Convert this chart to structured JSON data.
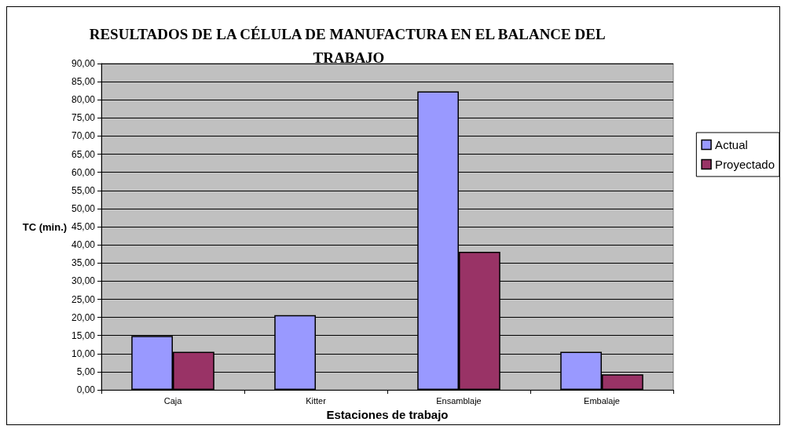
{
  "chart_data": {
    "type": "bar",
    "title": "RESULTADOS DE LA CÉLULA DE MANUFACTURA EN EL BALANCE DEL TRABAJO",
    "xlabel": "Estaciones de trabajo",
    "ylabel": "TC (min.)",
    "categories": [
      "Caja",
      "Kitter",
      "Ensamblaje",
      "Embalaje"
    ],
    "series": [
      {
        "name": "Actual",
        "color": "#9999ff",
        "values": [
          14.9,
          20.6,
          82.3,
          10.5
        ]
      },
      {
        "name": "Proyectado",
        "color": "#993366",
        "values": [
          10.5,
          null,
          38.1,
          4.3
        ]
      }
    ],
    "ylim": [
      0,
      90
    ],
    "yticks": [
      {
        "value": 0,
        "label": "0,00"
      },
      {
        "value": 5,
        "label": "5,00"
      },
      {
        "value": 10,
        "label": "10,00"
      },
      {
        "value": 15,
        "label": "15,00"
      },
      {
        "value": 20,
        "label": "20,00"
      },
      {
        "value": 25,
        "label": "25,00"
      },
      {
        "value": 30,
        "label": "30,00"
      },
      {
        "value": 35,
        "label": "35,00"
      },
      {
        "value": 40,
        "label": "40,00"
      },
      {
        "value": 45,
        "label": "45,00"
      },
      {
        "value": 50,
        "label": "50,00"
      },
      {
        "value": 55,
        "label": "55,00"
      },
      {
        "value": 60,
        "label": "60,00"
      },
      {
        "value": 65,
        "label": "65,00"
      },
      {
        "value": 70,
        "label": "70,00"
      },
      {
        "value": 75,
        "label": "75,00"
      },
      {
        "value": 80,
        "label": "80,00"
      },
      {
        "value": 85,
        "label": "85,00"
      },
      {
        "value": 90,
        "label": "90,00"
      }
    ],
    "grid": "y",
    "legend": "right"
  }
}
